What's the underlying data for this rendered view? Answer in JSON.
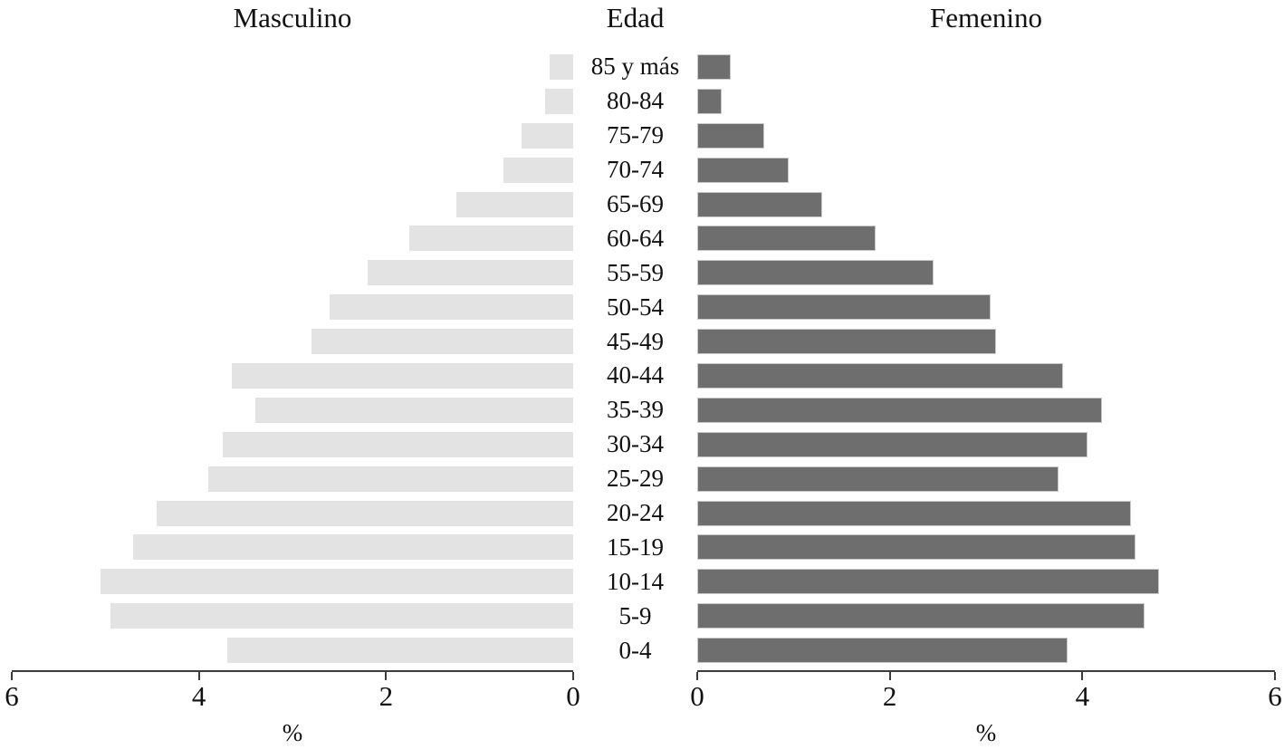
{
  "titles": {
    "left": "Masculino",
    "center": "Edad",
    "right": "Femenino"
  },
  "chart_data": {
    "type": "bar",
    "subtype": "population_pyramid",
    "title": "",
    "xlabel": "%",
    "xlim": [
      0,
      6
    ],
    "grid": false,
    "categories": [
      "85 y más",
      "80-84",
      "75-79",
      "70-74",
      "65-69",
      "60-64",
      "55-59",
      "50-54",
      "45-49",
      "40-44",
      "35-39",
      "30-34",
      "25-29",
      "20-24",
      "15-19",
      "10-14",
      "5-9",
      "0-4"
    ],
    "series": [
      {
        "name": "Masculino",
        "side": "left",
        "color": "#e3e3e3",
        "values": [
          0.25,
          0.3,
          0.55,
          0.75,
          1.25,
          1.75,
          2.2,
          2.6,
          2.8,
          3.65,
          3.4,
          3.75,
          3.9,
          4.45,
          4.7,
          5.05,
          4.95,
          3.7
        ]
      },
      {
        "name": "Femenino",
        "side": "right",
        "color": "#6e6e6e",
        "values": [
          0.35,
          0.25,
          0.7,
          0.95,
          1.3,
          1.85,
          2.45,
          3.05,
          3.1,
          3.8,
          4.2,
          4.05,
          3.75,
          4.5,
          4.55,
          4.8,
          4.65,
          3.85
        ]
      }
    ],
    "ticks_left": [
      "6",
      "4",
      "2",
      "0"
    ],
    "ticks_right": [
      "0",
      "2",
      "4",
      "6"
    ]
  },
  "colors": {
    "background": "#ffffff",
    "axis": "#3c3c3c",
    "text": "#111111",
    "bar_left": "#e3e3e3",
    "bar_right": "#6e6e6e",
    "bar_right_border": "#c9c9c9"
  }
}
